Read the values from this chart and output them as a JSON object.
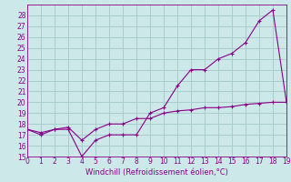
{
  "x": [
    0,
    1,
    2,
    3,
    4,
    5,
    6,
    7,
    8,
    9,
    10,
    11,
    12,
    13,
    14,
    15,
    16,
    17,
    18,
    19
  ],
  "curve1": [
    17.5,
    17.0,
    17.5,
    17.5,
    15.0,
    16.5,
    17.0,
    17.0,
    17.0,
    19.0,
    19.5,
    21.5,
    23.0,
    23.0,
    24.0,
    24.5,
    25.5,
    27.5,
    28.5,
    20.0
  ],
  "curve2": [
    17.5,
    17.2,
    17.5,
    17.7,
    16.5,
    17.5,
    18.0,
    18.0,
    18.5,
    18.5,
    19.0,
    19.2,
    19.3,
    19.5,
    19.5,
    19.6,
    19.8,
    19.9,
    20.0,
    20.0
  ],
  "line_color": "#880088",
  "bg_color": "#cce8e8",
  "grid_color": "#aacccc",
  "xlabel": "Windchill (Refroidissement éolien,°C)",
  "ylim": [
    15,
    29
  ],
  "xlim": [
    0,
    19
  ],
  "yticks": [
    15,
    16,
    17,
    18,
    19,
    20,
    21,
    22,
    23,
    24,
    25,
    26,
    27,
    28
  ],
  "xticks": [
    0,
    1,
    2,
    3,
    4,
    5,
    6,
    7,
    8,
    9,
    10,
    11,
    12,
    13,
    14,
    15,
    16,
    17,
    18,
    19
  ],
  "tick_fontsize": 5.5,
  "xlabel_fontsize": 6.0
}
